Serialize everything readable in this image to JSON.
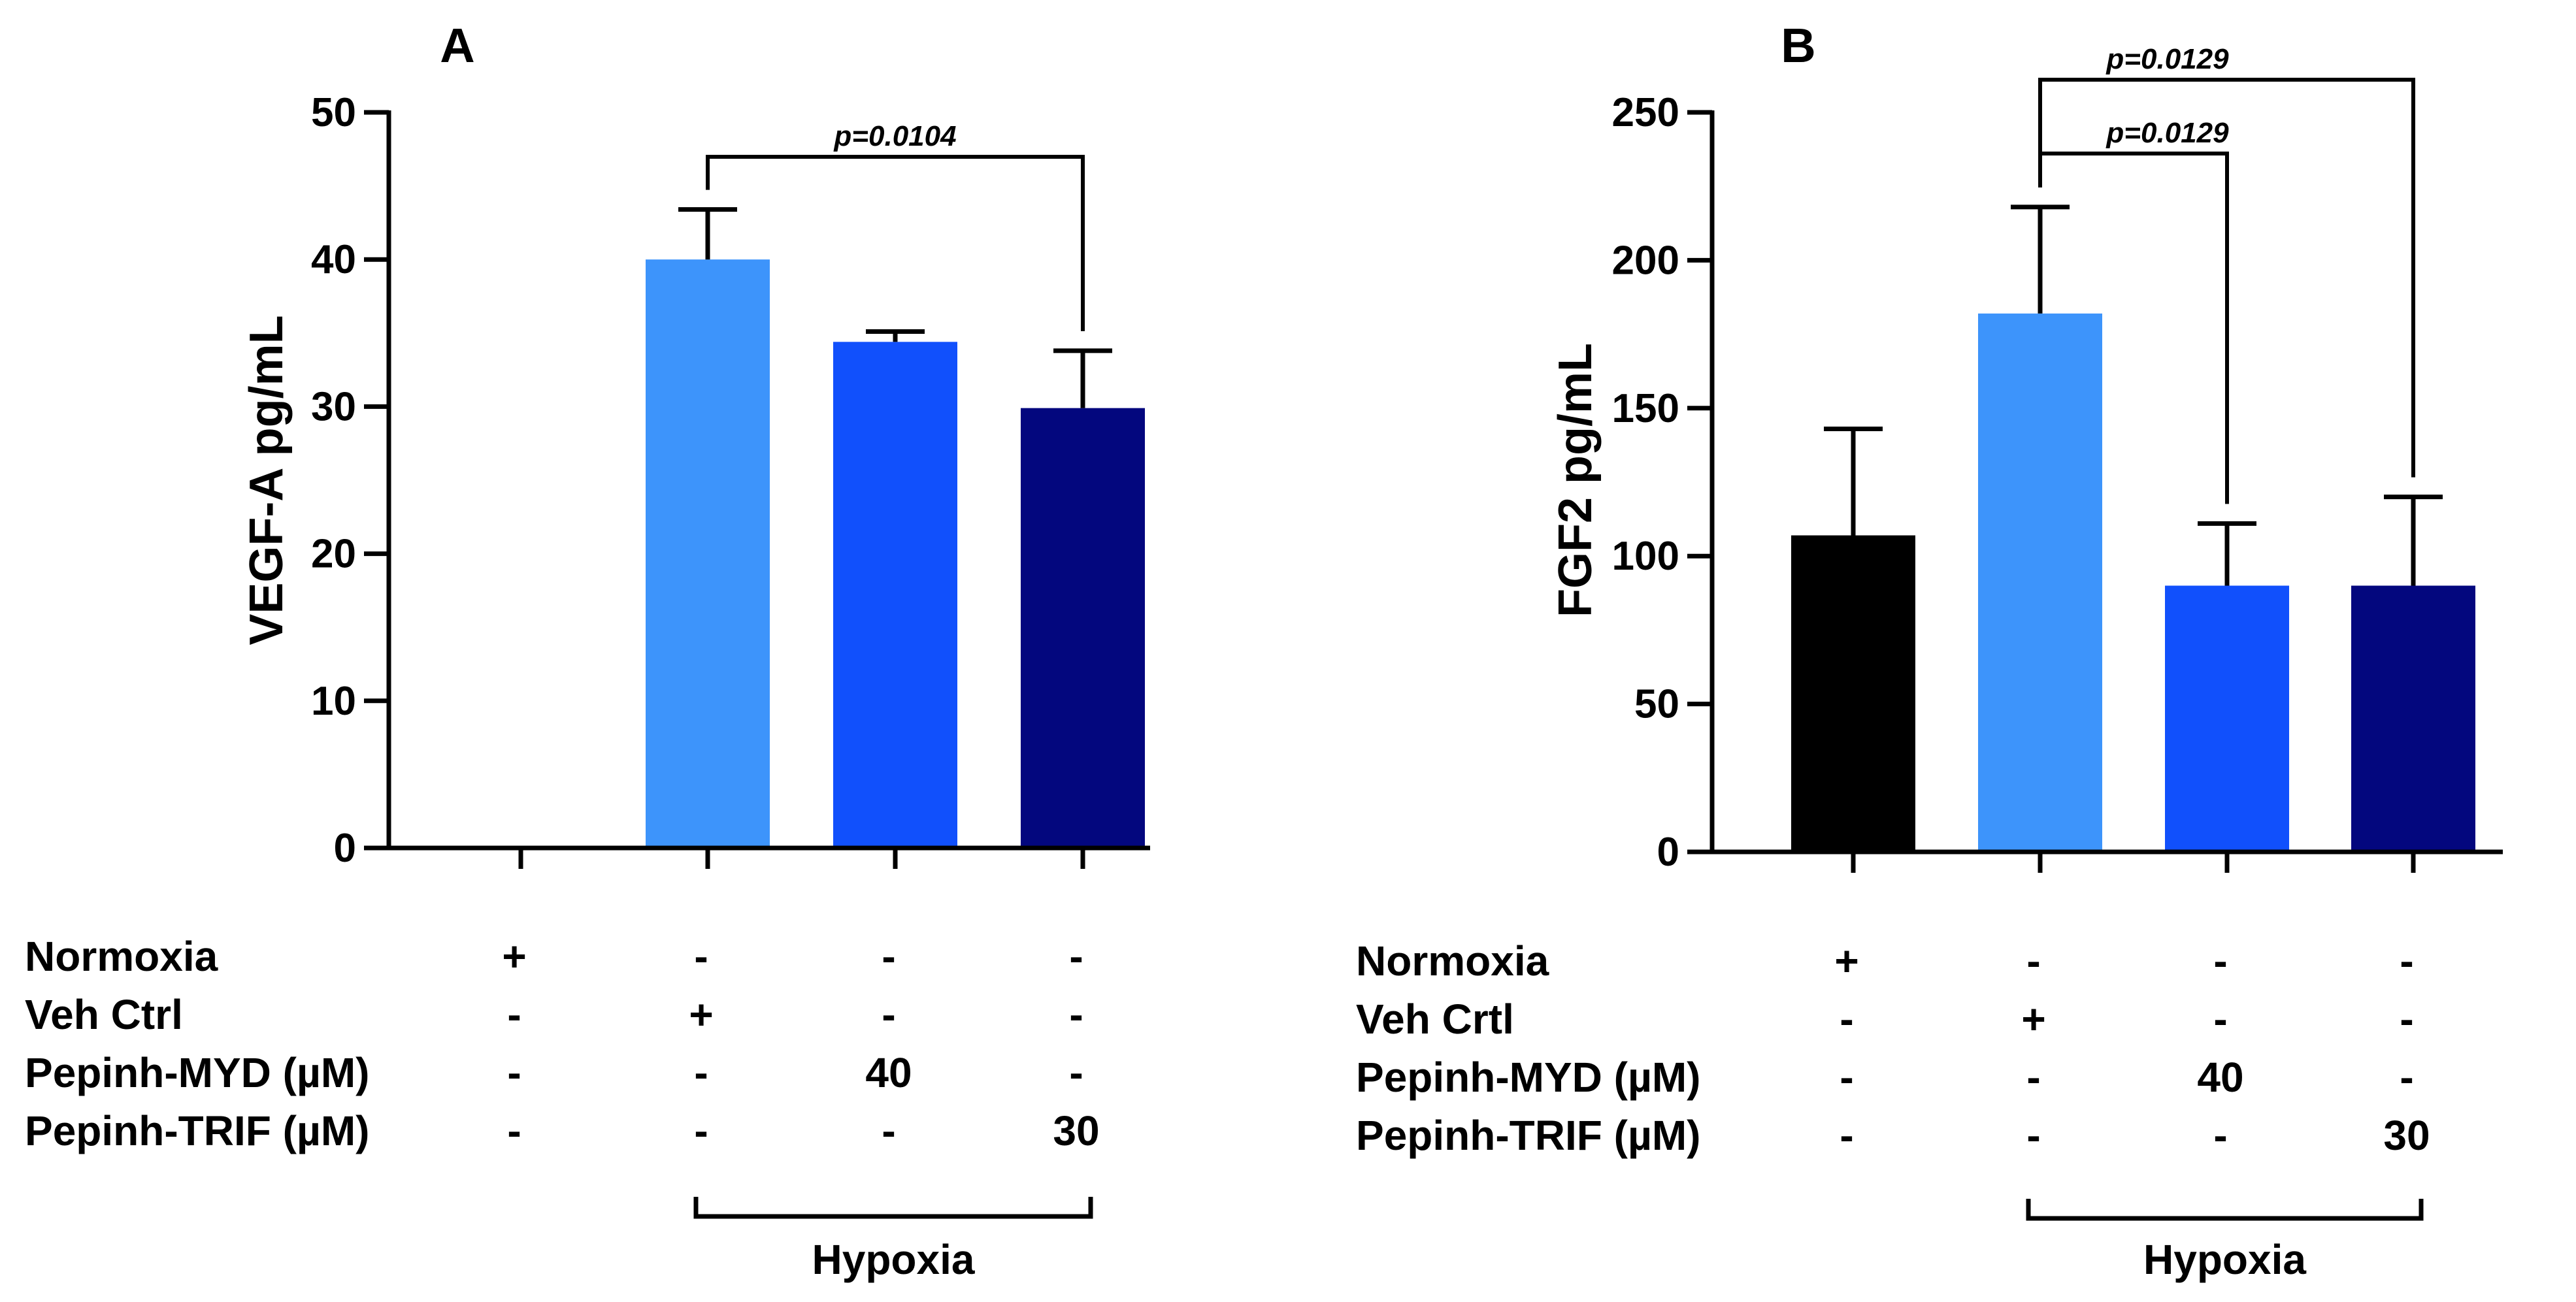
{
  "chart_data": [
    {
      "type": "bar",
      "panel": "A",
      "title": "",
      "xlabel": "",
      "ylabel": "VEGF-A pg/mL",
      "ylim": [
        0,
        50
      ],
      "yticks": [
        0,
        10,
        20,
        30,
        40,
        50
      ],
      "grid": false,
      "categories": [
        "Normoxia",
        "Veh Ctrl",
        "Pepinh-MYD 40 µM",
        "Pepinh-TRIF 30 µM"
      ],
      "values": [
        0,
        40,
        34.4,
        29.9
      ],
      "errors": [
        0,
        3.4,
        0.7,
        3.9
      ],
      "colors": [
        "#000000",
        "#3D94FB",
        "#1150FC",
        "#03077E"
      ],
      "significance": [
        {
          "from": 1,
          "to": 3,
          "label": "p=0.0104"
        }
      ],
      "conditions": {
        "row_labels": [
          "Normoxia",
          "Veh Ctrl",
          "Pepinh-MYD (µM)",
          "Pepinh-TRIF (µM)"
        ],
        "columns": [
          [
            "+",
            "-",
            "-",
            "-"
          ],
          [
            "-",
            "+",
            "-",
            "-"
          ],
          [
            "-",
            "-",
            "40",
            "-"
          ],
          [
            "-",
            "-",
            "-",
            "30"
          ]
        ],
        "bracket_label": "Hypoxia",
        "bracket_from": 1,
        "bracket_to": 3
      }
    },
    {
      "type": "bar",
      "panel": "B",
      "title": "",
      "xlabel": "",
      "ylabel": "FGF2 pg/mL",
      "ylim": [
        0,
        250
      ],
      "yticks": [
        0,
        50,
        100,
        150,
        200,
        250
      ],
      "grid": false,
      "categories": [
        "Normoxia",
        "Veh Crtl",
        "Pepinh-MYD 40 µM",
        "Pepinh-TRIF 30 µM"
      ],
      "values": [
        107,
        182,
        90,
        90
      ],
      "errors": [
        36,
        36,
        21,
        30
      ],
      "colors": [
        "#000000",
        "#3D94FB",
        "#1150FC",
        "#03077E"
      ],
      "significance": [
        {
          "from": 1,
          "to": 2,
          "label": "p=0.0129"
        },
        {
          "from": 1,
          "to": 3,
          "label": "p=0.0129"
        }
      ],
      "conditions": {
        "row_labels": [
          "Normoxia",
          "Veh Crtl",
          "Pepinh-MYD (µM)",
          "Pepinh-TRIF (µM)"
        ],
        "columns": [
          [
            "+",
            "-",
            "-",
            "-"
          ],
          [
            "-",
            "+",
            "-",
            "-"
          ],
          [
            "-",
            "-",
            "40",
            "-"
          ],
          [
            "-",
            "-",
            "-",
            "30"
          ]
        ],
        "bracket_label": "Hypoxia",
        "bracket_from": 1,
        "bracket_to": 3
      }
    }
  ]
}
